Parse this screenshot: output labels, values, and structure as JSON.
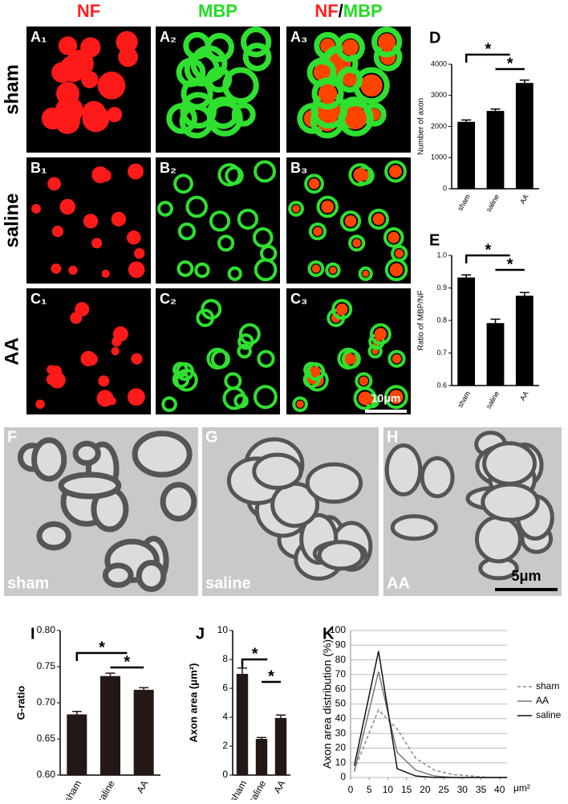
{
  "figure": {
    "headers": [
      "NF",
      "MBP"
    ],
    "merged_header": [
      "NF",
      "/",
      "MBP"
    ],
    "rows": [
      "sham",
      "saline",
      "AA"
    ],
    "panel_labels": [
      [
        "A₁",
        "A₂",
        "A₃"
      ],
      [
        "B₁",
        "B₂",
        "B₃"
      ],
      [
        "C₁",
        "C₂",
        "C₃"
      ]
    ],
    "scale_bar": "10μm",
    "em_panels": [
      {
        "label": "F",
        "group": "sham"
      },
      {
        "label": "G",
        "group": "saline"
      },
      {
        "label": "H",
        "group": "AA"
      }
    ],
    "em_scale_bar": "5μm"
  },
  "chart_data": [
    {
      "type": "bar",
      "label": "D",
      "ylabel": "Number of axon",
      "categories": [
        "sham",
        "saline",
        "AA"
      ],
      "values": [
        2150,
        2500,
        3400
      ],
      "errors": [
        60,
        60,
        90
      ],
      "color": "#000000",
      "ylim": [
        0,
        4000
      ],
      "yticks": [
        0,
        1000,
        2000,
        3000,
        4000
      ],
      "annotations": [
        "*",
        "*"
      ]
    },
    {
      "type": "bar",
      "label": "E",
      "ylabel": "Ratio of MBP/NF",
      "categories": [
        "sham",
        "saline",
        "AA"
      ],
      "values": [
        0.932,
        0.792,
        0.876
      ],
      "errors": [
        0.008,
        0.012,
        0.01
      ],
      "color": "#000000",
      "ylim": [
        0.6,
        1
      ],
      "yticks": [
        0.6,
        0.7,
        0.8,
        0.9,
        {
          "value": 1,
          "label": "1.0"
        }
      ],
      "annotations": [
        "*",
        "*"
      ]
    },
    {
      "type": "bar",
      "label": "I",
      "ylabel": "G-ratio",
      "categories": [
        "sham",
        "saline",
        "AA"
      ],
      "values": [
        0.684,
        0.737,
        0.718
      ],
      "errors": [
        0.004,
        0.004,
        0.003
      ],
      "color": "#231815",
      "ylim": [
        0.6,
        0.8
      ],
      "yticks": [
        {
          "value": 0.6,
          "label": "0.60"
        },
        0.65,
        {
          "value": 0.7,
          "label": "0.70"
        },
        0.75,
        {
          "value": 0.8,
          "label": "0.80"
        }
      ],
      "annotations": [
        "*",
        "*"
      ]
    },
    {
      "type": "bar",
      "label": "J",
      "ylabel": "Axon area (μm²)",
      "categories": [
        "sham",
        "saline",
        "AA"
      ],
      "values": [
        7.0,
        2.5,
        3.95
      ],
      "errors": [
        0.4,
        0.1,
        0.2
      ],
      "color": "#231815",
      "ylim": [
        0,
        10
      ],
      "yticks": [
        0,
        2,
        4,
        6,
        8,
        10
      ],
      "annotations": [
        "*",
        "*"
      ]
    },
    {
      "type": "line",
      "label": "K",
      "ylabel": "Axon area distribution (%)",
      "x": [
        1,
        7.5,
        12.5,
        17.5,
        22.5,
        27.5,
        32.5,
        37.5,
        42
      ],
      "xlim": [
        0,
        42
      ],
      "xticks": [
        0,
        5,
        10,
        15,
        20,
        25,
        30,
        35,
        40
      ],
      "x_unit": "μm²",
      "ylim": [
        0,
        100
      ],
      "yticks": [
        0,
        10,
        20,
        30,
        40,
        50,
        60,
        70,
        80,
        90,
        100
      ],
      "grid": true,
      "series": [
        {
          "name": "sham",
          "color": "#888888",
          "linestyle": "dashed",
          "values": [
            5,
            46,
            33,
            13,
            5,
            2,
            1,
            0,
            0
          ]
        },
        {
          "name": "AA",
          "color": "#777777",
          "linestyle": "solid",
          "values": [
            4,
            72,
            17,
            5,
            1,
            0,
            0,
            0,
            0
          ]
        },
        {
          "name": "saline",
          "color": "#111111",
          "linestyle": "solid",
          "values": [
            8,
            86,
            6,
            1,
            0,
            0,
            0,
            0,
            0
          ]
        }
      ]
    }
  ]
}
